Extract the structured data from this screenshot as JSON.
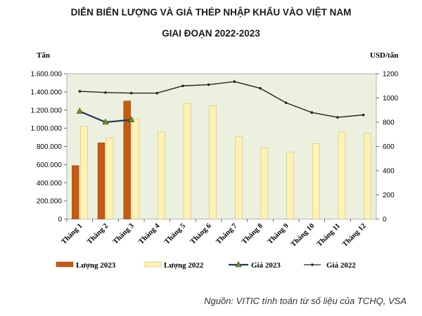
{
  "chart_data": {
    "type": "bar",
    "title": "DIỄN BIẾN LƯỢNG VÀ GIÁ THÉP NHẬP KHẨU VÀO VIỆT NAM",
    "subtitle": "GIAI ĐOẠN 2022-2023",
    "ylabel": "Tấn",
    "y2label": "USD/tấn",
    "ylim": [
      0,
      1600000
    ],
    "y2lim": [
      0,
      1200
    ],
    "yticks": [
      "0",
      "200.000",
      "400.000",
      "600.000",
      "800.000",
      "1.000.000",
      "1.200.000",
      "1.400.000",
      "1.600.000"
    ],
    "y2ticks": [
      "0",
      "200",
      "400",
      "600",
      "800",
      "1000",
      "1200"
    ],
    "categories": [
      "Tháng 1",
      "Tháng 2",
      "Tháng 3",
      "Tháng 4",
      "Tháng 5",
      "Tháng 6",
      "Tháng 7",
      "Tháng 8",
      "Tháng 9",
      "Tháng 10",
      "Tháng 11",
      "Tháng 12"
    ],
    "grid": false,
    "legend_position": "bottom",
    "series": [
      {
        "name": "Lượng 2023",
        "kind": "bar",
        "axis": "left",
        "color": "#c55a11",
        "values": [
          590000,
          840000,
          1300000,
          null,
          null,
          null,
          null,
          null,
          null,
          null,
          null,
          null
        ]
      },
      {
        "name": "Lượng 2022",
        "kind": "bar",
        "axis": "left",
        "color": "#fff2b3",
        "values": [
          1020000,
          895000,
          1100000,
          960000,
          1275000,
          1245000,
          910000,
          785000,
          740000,
          830000,
          960000,
          945000
        ]
      },
      {
        "name": "Giá 2023",
        "kind": "line",
        "axis": "right",
        "color": "#1f3864",
        "values": [
          890,
          800,
          820,
          null,
          null,
          null,
          null,
          null,
          null,
          null,
          null,
          null
        ]
      },
      {
        "name": "Giá 2022",
        "kind": "line",
        "axis": "right",
        "color": "#222222",
        "values": [
          1055,
          1045,
          1040,
          1040,
          1100,
          1110,
          1135,
          1080,
          960,
          880,
          840,
          860
        ]
      }
    ]
  },
  "source": "Nguồn: VITIC tính toán từ số liệu của TCHQ, VSA"
}
